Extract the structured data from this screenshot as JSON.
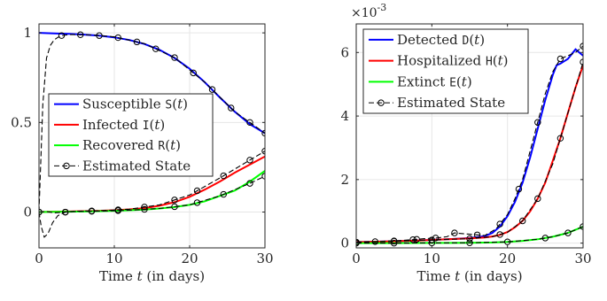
{
  "chart_data": [
    {
      "type": "line",
      "xlabel": "Time t (in days)",
      "xlim": [
        0,
        30
      ],
      "ylim": [
        -0.2,
        1.05
      ],
      "xticks": [
        "0",
        "10",
        "20",
        "30"
      ],
      "yticks": [
        "0",
        "0.5",
        "1"
      ],
      "ytick_values": [
        0,
        0.5,
        1
      ],
      "grid": true,
      "legend_position": "center-right",
      "series": [
        {
          "name": "Susceptible S(t)",
          "color": "#0000ff",
          "x": [
            0,
            2,
            4,
            6,
            8,
            10,
            12,
            14,
            16,
            18,
            20,
            22,
            24,
            26,
            28,
            30
          ],
          "y": [
            1.0,
            0.997,
            0.994,
            0.99,
            0.985,
            0.975,
            0.96,
            0.938,
            0.905,
            0.86,
            0.8,
            0.725,
            0.64,
            0.56,
            0.49,
            0.44
          ]
        },
        {
          "name": "Infected I(t)",
          "color": "#ff0000",
          "x": [
            0,
            2,
            4,
            6,
            8,
            10,
            12,
            14,
            16,
            18,
            20,
            22,
            24,
            26,
            28,
            30
          ],
          "y": [
            0.0,
            0.002,
            0.003,
            0.005,
            0.007,
            0.01,
            0.015,
            0.022,
            0.035,
            0.055,
            0.085,
            0.125,
            0.17,
            0.22,
            0.265,
            0.31
          ]
        },
        {
          "name": "Recovered R(t)",
          "color": "#00ff00",
          "x": [
            0,
            2,
            4,
            6,
            8,
            10,
            12,
            14,
            16,
            18,
            20,
            22,
            24,
            26,
            28,
            30
          ],
          "y": [
            0.0,
            0.001,
            0.002,
            0.003,
            0.005,
            0.007,
            0.01,
            0.014,
            0.02,
            0.028,
            0.04,
            0.06,
            0.09,
            0.12,
            0.17,
            0.23
          ]
        },
        {
          "name": "Estimated State",
          "color": "#000000",
          "dashed": true,
          "markers": true,
          "lines": [
            {
              "x": [
                0,
                0.5,
                1,
                1.5,
                2,
                2.5,
                3,
                4,
                5,
                7,
                10,
                14,
                18,
                22,
                26,
                30
              ],
              "y": [
                0.0,
                0.6,
                0.86,
                0.93,
                0.96,
                0.975,
                0.985,
                0.99,
                0.99,
                0.988,
                0.978,
                0.94,
                0.862,
                0.725,
                0.56,
                0.44
              ],
              "markers_x": [
                3,
                5.5,
                8,
                10.5,
                13,
                15.5,
                18,
                20.5,
                23,
                25.5,
                28,
                30
              ]
            },
            {
              "x": [
                0,
                0.3,
                0.7,
                1.2,
                1.8,
                2.5,
                3.5,
                5,
                8,
                12,
                16,
                20,
                24,
                28,
                30
              ],
              "y": [
                0.0,
                -0.08,
                -0.14,
                -0.12,
                -0.06,
                -0.02,
                0.0,
                0.005,
                0.007,
                0.016,
                0.04,
                0.095,
                0.19,
                0.29,
                0.34
              ],
              "markers_x": [
                0,
                3.5,
                7,
                10.5,
                14,
                18,
                21,
                24.5,
                28,
                30
              ]
            },
            {
              "x": [
                0,
                1,
                2,
                3,
                5,
                8,
                12,
                16,
                20,
                24,
                28,
                30
              ],
              "y": [
                0.0,
                0.003,
                -0.005,
                -0.002,
                0.003,
                0.005,
                0.01,
                0.02,
                0.04,
                0.09,
                0.16,
                0.2
              ],
              "markers_x": [
                0,
                3.5,
                7,
                10.5,
                14,
                18,
                21,
                24.5,
                28,
                30
              ]
            }
          ]
        }
      ]
    },
    {
      "type": "line",
      "xlabel": "Time t (in days)",
      "xlim": [
        0,
        30
      ],
      "ylim": [
        -0.00015,
        0.0069
      ],
      "xticks": [
        "0",
        "10",
        "20",
        "30"
      ],
      "yticks": [
        "0",
        "2",
        "4",
        "6"
      ],
      "ytick_values": [
        0,
        0.002,
        0.004,
        0.006
      ],
      "y_exponent_label": "×10",
      "y_exponent": "-3",
      "grid": true,
      "legend_position": "top-left",
      "series": [
        {
          "name": "Detected D(t)",
          "color": "#0000ff",
          "x": [
            0,
            4,
            8,
            12,
            15,
            17,
            18,
            19,
            20,
            21,
            22,
            23,
            24,
            25,
            26,
            26.5,
            27,
            28,
            29,
            30
          ],
          "y": [
            3e-05,
            5e-05,
            8e-05,
            0.00012,
            0.00016,
            0.00022,
            0.00032,
            0.00052,
            0.00085,
            0.0013,
            0.0019,
            0.0027,
            0.0036,
            0.0045,
            0.0053,
            0.0056,
            0.00565,
            0.0058,
            0.0061,
            0.0059
          ]
        },
        {
          "name": "Hospitalized H(t)",
          "color": "#ff0000",
          "x": [
            0,
            4,
            8,
            12,
            15,
            17,
            18,
            19,
            20,
            21,
            22,
            23,
            24,
            25,
            26,
            27,
            28,
            29,
            30
          ],
          "y": [
            3e-05,
            5e-05,
            8e-05,
            0.00012,
            0.00015,
            0.00018,
            0.00021,
            0.00026,
            0.00035,
            0.0005,
            0.0007,
            0.001,
            0.0014,
            0.0019,
            0.0026,
            0.0033,
            0.0041,
            0.0049,
            0.0056
          ]
        },
        {
          "name": "Extinct E(t)",
          "color": "#00ff00",
          "x": [
            0,
            5,
            10,
            15,
            18,
            20,
            22,
            24,
            26,
            28,
            30
          ],
          "y": [
            0.0,
            0.0,
            5e-06,
            1e-05,
            2e-05,
            4e-05,
            7e-05,
            0.00012,
            0.0002,
            0.00032,
            0.00052
          ]
        },
        {
          "name": "Estimated State",
          "color": "#000000",
          "dashed": true,
          "markers": true,
          "lines": [
            {
              "x": [
                0,
                3,
                6,
                9,
                10.5,
                12,
                13,
                15,
                17,
                18.5,
                20,
                21,
                22,
                23,
                24,
                25,
                26,
                27,
                28,
                29,
                30
              ],
              "y": [
                3e-05,
                5e-05,
                8e-05,
                0.00014,
                0.00016,
                0.0002,
                0.00032,
                0.00028,
                0.00024,
                0.00045,
                0.0009,
                0.0014,
                0.002,
                0.0029,
                0.0038,
                0.0047,
                0.0054,
                0.0058,
                0.0059,
                0.006,
                0.0062
              ],
              "markers_x": [
                0,
                2.5,
                5,
                7.5,
                8,
                10.5,
                13,
                16,
                19,
                21.5,
                24,
                27,
                30
              ]
            },
            {
              "x": [
                0,
                5,
                10,
                15,
                18,
                20,
                22,
                24,
                26,
                27,
                28,
                29,
                30
              ],
              "y": [
                3e-05,
                6e-05,
                0.0001,
                0.00014,
                0.0002,
                0.00034,
                0.0007,
                0.0014,
                0.0025,
                0.0033,
                0.0041,
                0.0049,
                0.0057
              ],
              "markers_x": [
                0,
                5,
                10,
                15,
                19,
                22,
                24,
                27,
                30
              ]
            },
            {
              "x": [
                0,
                5,
                10,
                15,
                20,
                24,
                26,
                28,
                30
              ],
              "y": [
                0.0,
                0.0,
                5e-06,
                1e-05,
                4e-05,
                0.00012,
                0.0002,
                0.00032,
                0.00052
              ],
              "markers_x": [
                0,
                5,
                10,
                15,
                20,
                25,
                28,
                30
              ]
            }
          ]
        }
      ]
    }
  ]
}
